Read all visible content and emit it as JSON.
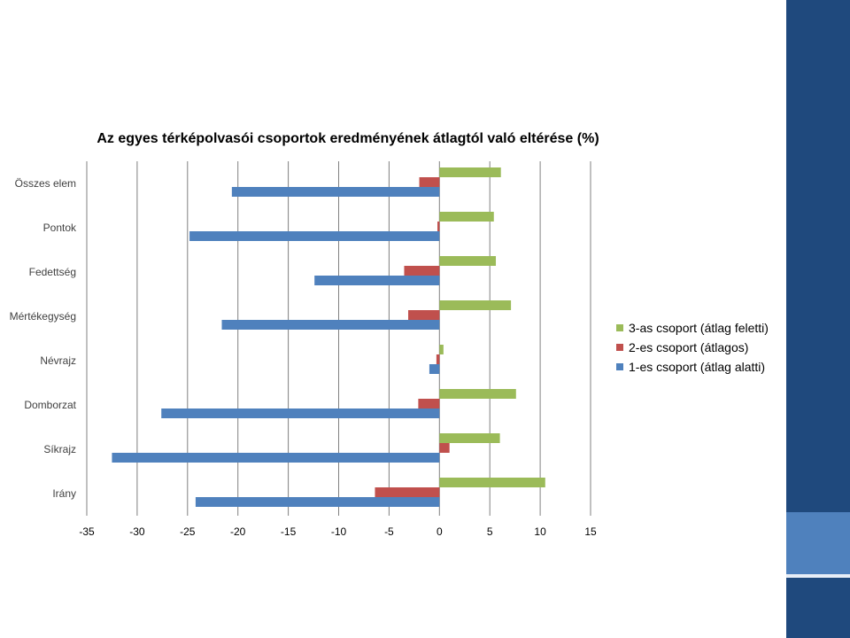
{
  "theme": {
    "background": "#ffffff",
    "accent_dark": "#1f497d",
    "accent_light": "#4f81bd"
  },
  "chart_data": {
    "type": "bar",
    "orientation": "horizontal",
    "title": "Az egyes térképolvasói csoportok eredményének átlagtól való eltérése (%)",
    "xlabel": "",
    "ylabel": "",
    "categories": [
      "Összes elem",
      "Pontok",
      "Fedettség",
      "Mértékegység",
      "Névrajz",
      "Domborzat",
      "Síkrajz",
      "Irány"
    ],
    "series": [
      {
        "name": "3-as csoport (átlag feletti)",
        "color": "#9bbb59",
        "values": [
          6.1,
          5.4,
          5.6,
          7.1,
          0.4,
          7.6,
          6.0,
          10.5
        ]
      },
      {
        "name": "2-es csoport (átlagos)",
        "color": "#c0504d",
        "values": [
          -2.0,
          -0.2,
          -3.5,
          -3.1,
          -0.3,
          -2.1,
          1.0,
          -6.4
        ]
      },
      {
        "name": "1-es csoport (átlag alatti)",
        "color": "#4f81bd",
        "values": [
          -20.6,
          -24.8,
          -12.4,
          -21.6,
          -1.0,
          -27.6,
          -32.5,
          -24.2
        ]
      }
    ],
    "xlim": [
      -35,
      15
    ],
    "xticks": [
      "-35",
      "-30",
      "-25",
      "-20",
      "-15",
      "-10",
      "-5",
      "0",
      "5",
      "10",
      "15"
    ],
    "grid": true,
    "legend_position": "right"
  }
}
